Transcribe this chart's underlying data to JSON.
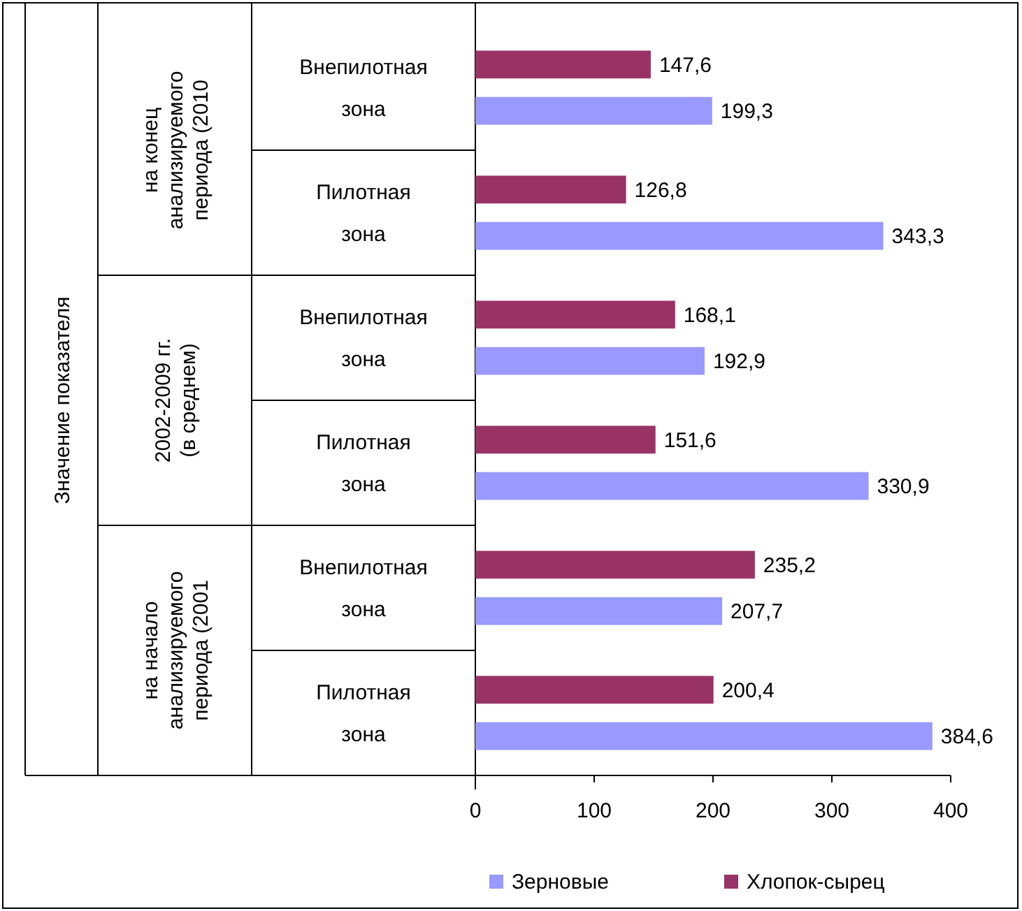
{
  "chart_data": {
    "type": "bar",
    "orientation": "horizontal",
    "annotations": [
      "Значение показателя",
      "на конец анализируемого периода (2010",
      "2002-2009 гг. (в среднем)",
      "на начало анализируемого периода (2001"
    ],
    "categories": [
      "Внепилотная зона",
      "Пилотная зона",
      "Внепилотная зона",
      "Пилотная зона",
      "Внепилотная зона",
      "Пилотная зона"
    ],
    "series": [
      {
        "name": "Зерновые",
        "color": "#9999ff",
        "values": [
          199.3,
          343.3,
          192.9,
          330.9,
          207.7,
          384.6
        ],
        "value_labels": [
          "199,3",
          "343,3",
          "192,9",
          "330,9",
          "207,7",
          "384,6"
        ]
      },
      {
        "name": "Хлопок-сырец",
        "color": "#993366",
        "values": [
          147.6,
          126.8,
          168.1,
          151.6,
          235.2,
          200.4
        ],
        "value_labels": [
          "147,6",
          "126,8",
          "168,1",
          "151,6",
          "235,2",
          "200,4"
        ]
      }
    ],
    "xlim": [
      0,
      400
    ],
    "xticks": [
      0,
      100,
      200,
      300,
      400
    ],
    "legend": "bottom"
  }
}
